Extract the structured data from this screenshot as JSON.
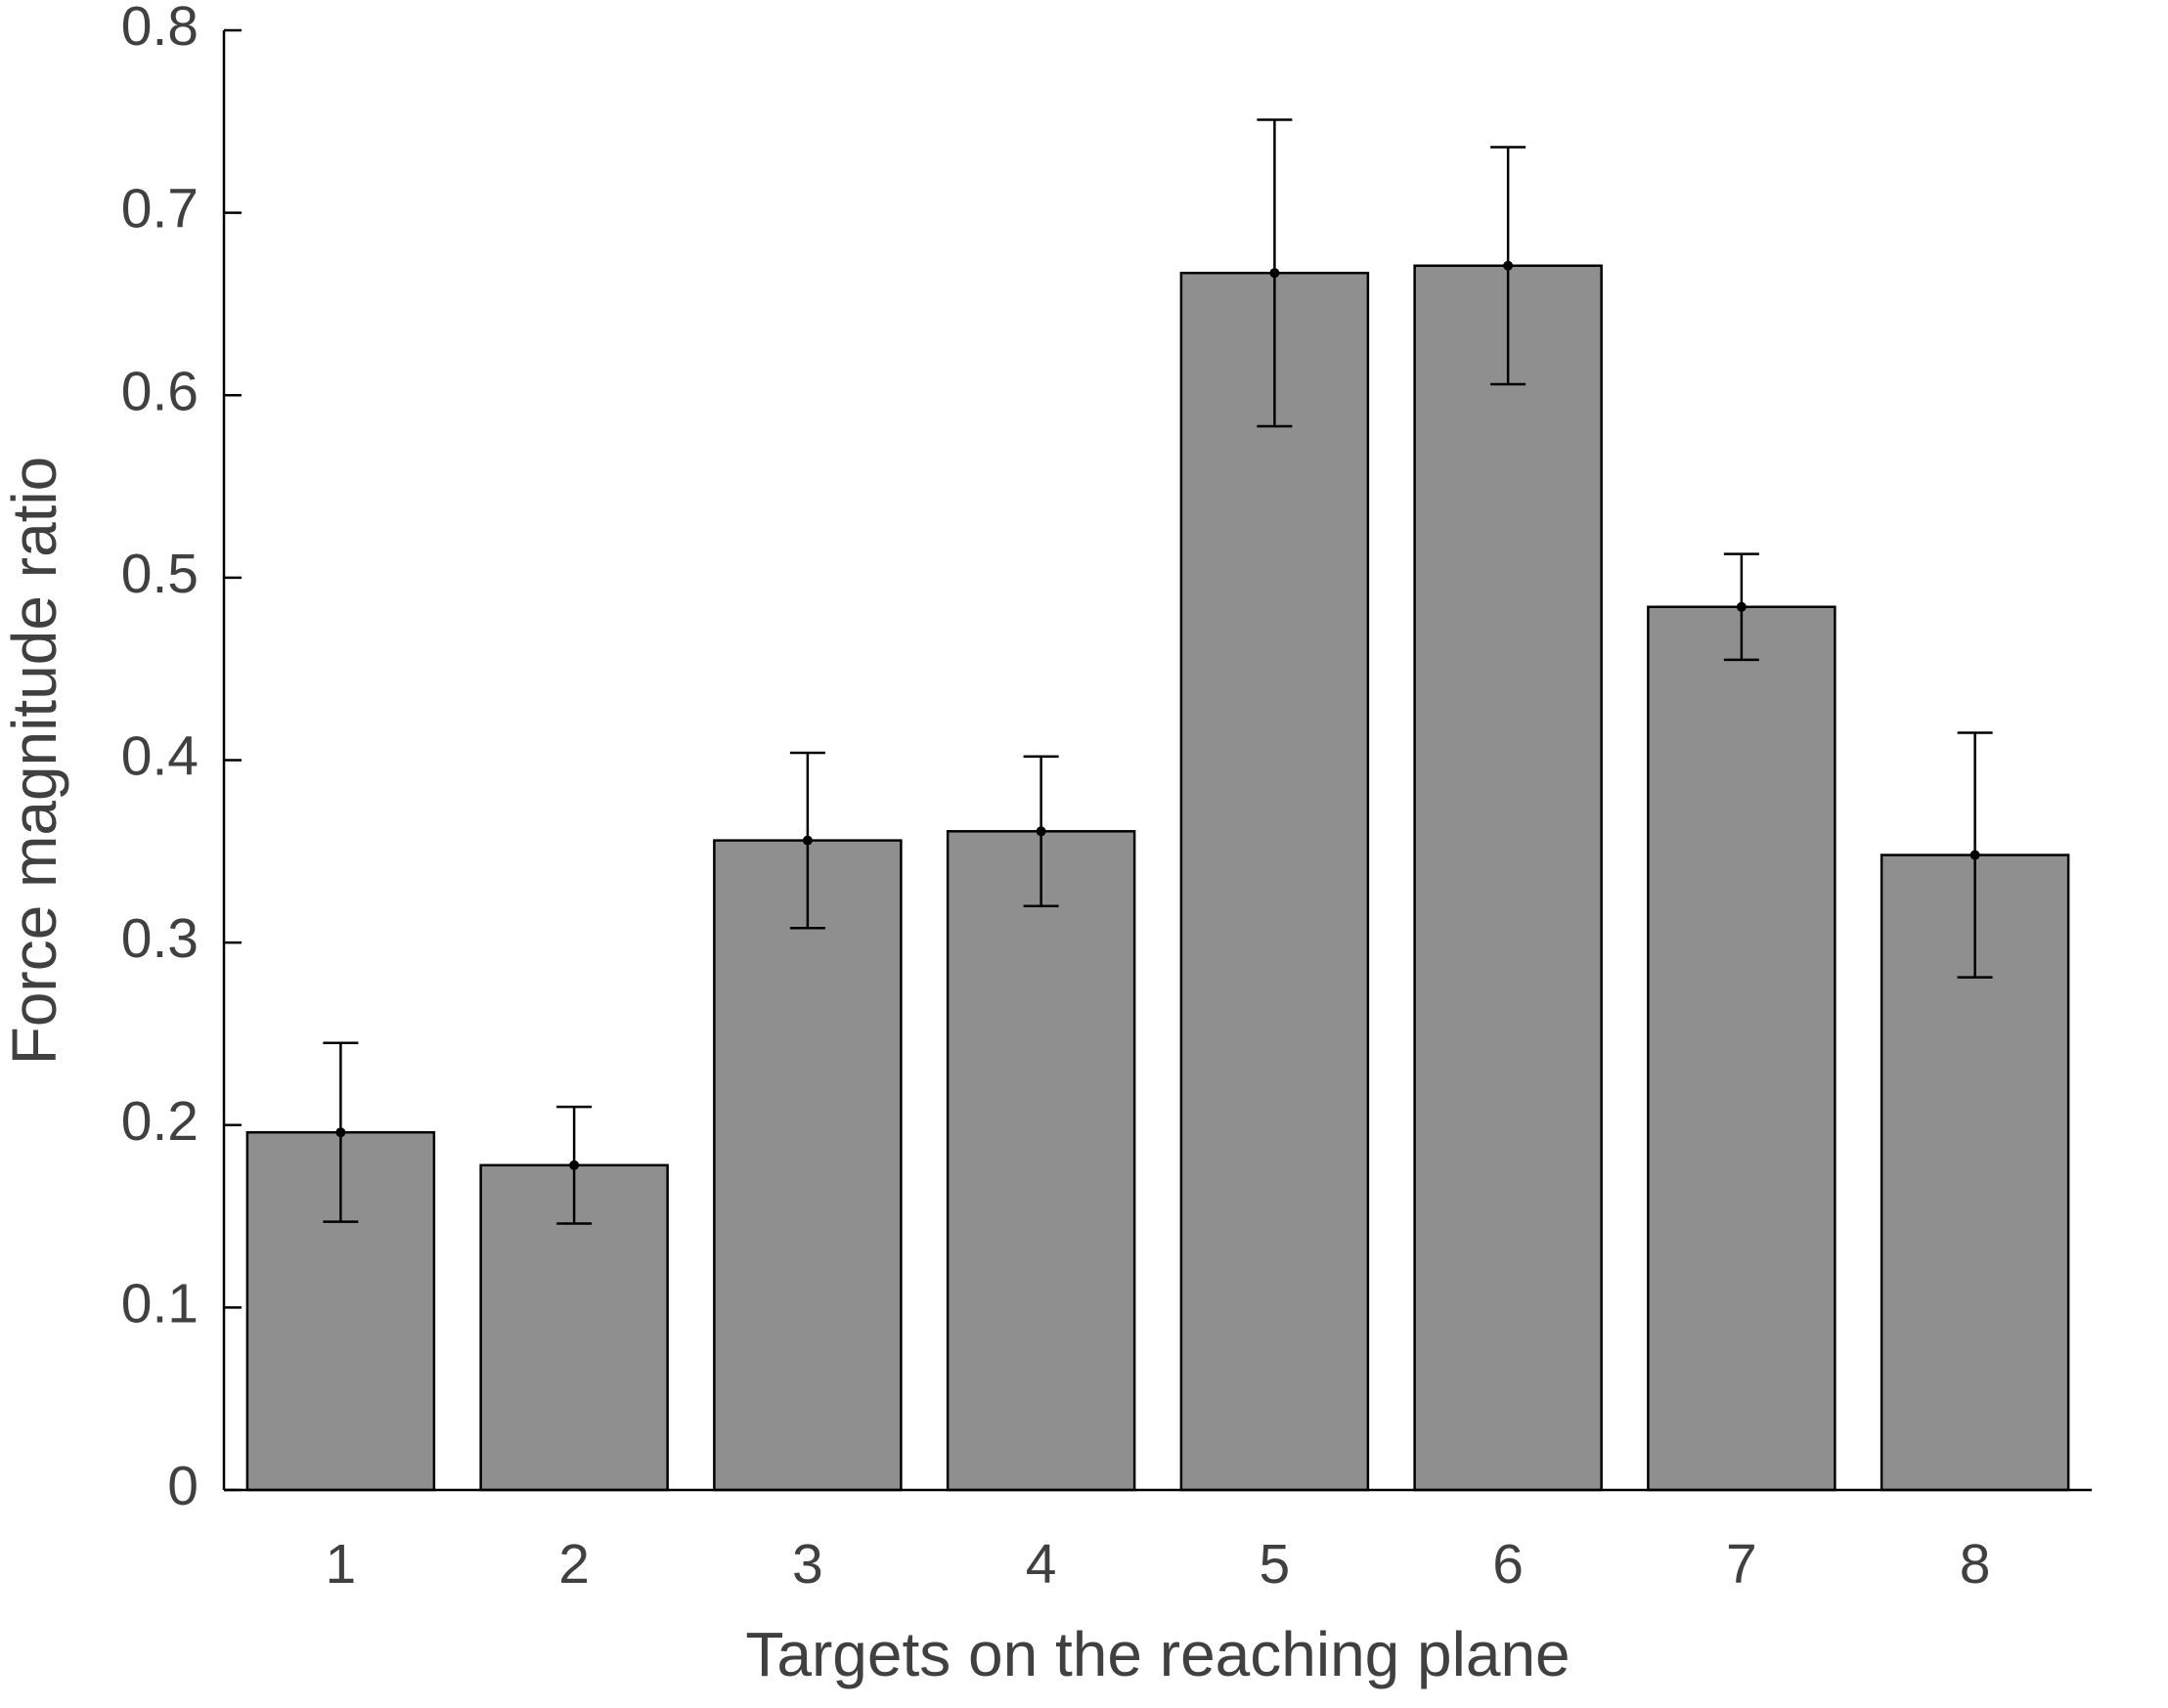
{
  "chart_data": {
    "type": "bar",
    "x_label": "Targets on the reaching plane",
    "y_label": "Force magnitude ratio",
    "categories": [
      "1",
      "2",
      "3",
      "4",
      "5",
      "6",
      "7",
      "8"
    ],
    "values": [
      0.196,
      0.178,
      0.356,
      0.361,
      0.667,
      0.671,
      0.484,
      0.348
    ],
    "errors": [
      0.049,
      0.032,
      0.048,
      0.041,
      0.084,
      0.065,
      0.029,
      0.067
    ],
    "color": "#8f8f8f",
    "ylim": [
      0,
      0.8
    ],
    "yticks": [
      0,
      0.1,
      0.2,
      0.3,
      0.4,
      0.5,
      0.6,
      0.7,
      0.8
    ]
  }
}
